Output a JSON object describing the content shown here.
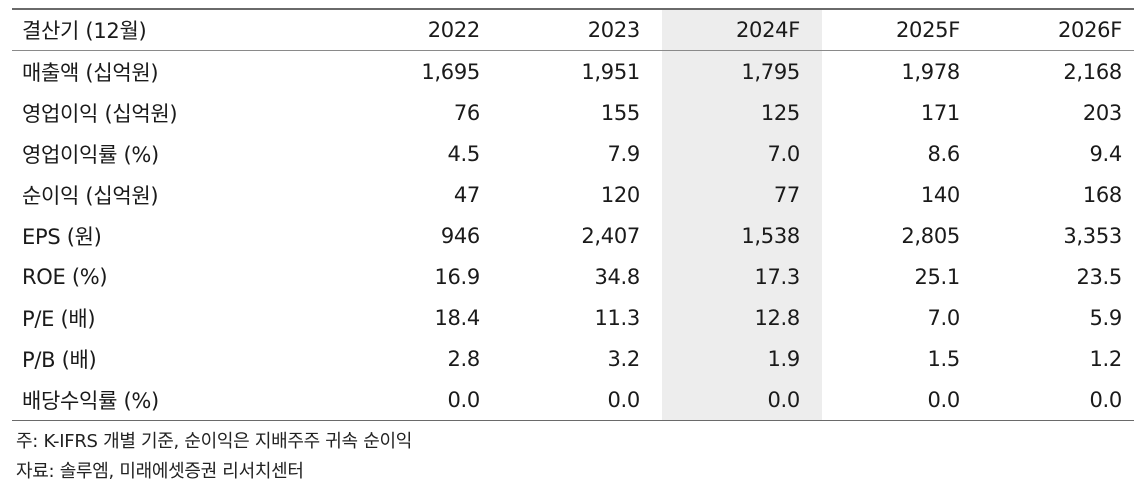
{
  "table": {
    "headers": [
      "결산기 (12월)",
      "2022",
      "2023",
      "2024F",
      "2025F",
      "2026F"
    ],
    "highlight_column_index": 3,
    "highlight_color": "#ededed",
    "rows": [
      {
        "label": "매출액 (십억원)",
        "values": [
          "1,695",
          "1,951",
          "1,795",
          "1,978",
          "2,168"
        ]
      },
      {
        "label": "영업이익 (십억원)",
        "values": [
          "76",
          "155",
          "125",
          "171",
          "203"
        ]
      },
      {
        "label": "영업이익률 (%)",
        "values": [
          "4.5",
          "7.9",
          "7.0",
          "8.6",
          "9.4"
        ]
      },
      {
        "label": "순이익 (십억원)",
        "values": [
          "47",
          "120",
          "77",
          "140",
          "168"
        ]
      },
      {
        "label": "EPS (원)",
        "values": [
          "946",
          "2,407",
          "1,538",
          "2,805",
          "3,353"
        ]
      },
      {
        "label": "ROE (%)",
        "values": [
          "16.9",
          "34.8",
          "17.3",
          "25.1",
          "23.5"
        ]
      },
      {
        "label": "P/E (배)",
        "values": [
          "18.4",
          "11.3",
          "12.8",
          "7.0",
          "5.9"
        ]
      },
      {
        "label": "P/B (배)",
        "values": [
          "2.8",
          "3.2",
          "1.9",
          "1.5",
          "1.2"
        ]
      },
      {
        "label": "배당수익률 (%)",
        "values": [
          "0.0",
          "0.0",
          "0.0",
          "0.0",
          "0.0"
        ]
      }
    ]
  },
  "notes": {
    "note": "주: K-IFRS 개별 기준, 순이익은 지배주주 귀속 순이익",
    "source": "자료: 솔루엠, 미래에셋증권 리서치센터"
  }
}
